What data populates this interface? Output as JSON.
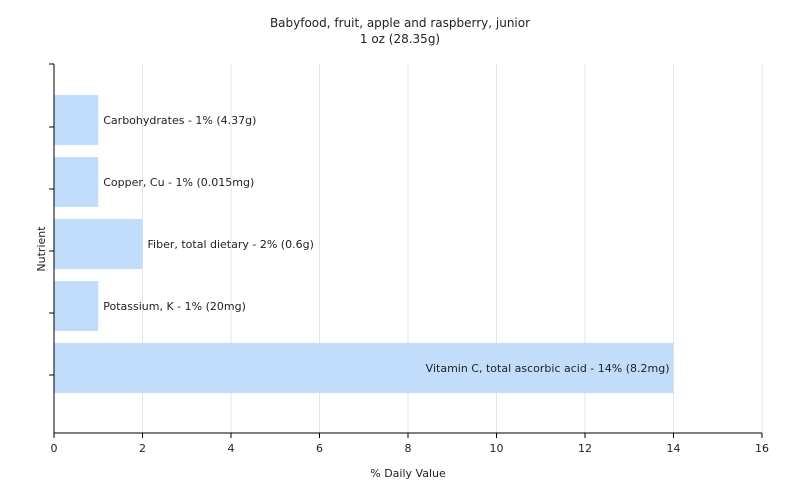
{
  "chart_data": {
    "type": "bar",
    "orientation": "horizontal",
    "title": "Babyfood, fruit, apple and raspberry,  junior",
    "subtitle": "1 oz (28.35g)",
    "xlabel": "% Daily Value",
    "ylabel": "Nutrient",
    "xlim": [
      0,
      16
    ],
    "xticks": [
      0,
      2,
      4,
      6,
      8,
      10,
      12,
      14,
      16
    ],
    "grid": true,
    "categories": [
      "Carbohydrates",
      "Copper, Cu",
      "Fiber, total dietary",
      "Potassium, K",
      "Vitamin C, total ascorbic acid"
    ],
    "values": [
      1,
      1,
      2,
      1,
      14
    ],
    "bar_labels": [
      "Carbohydrates - 1% (4.37g)",
      "Copper, Cu - 1% (0.015mg)",
      "Fiber, total dietary - 2% (0.6g)",
      "Potassium, K - 1% (20mg)",
      "Vitamin C, total ascorbic acid - 14% (8.2mg)"
    ],
    "bar_color": "#c2dcfc",
    "gridline_color": "#e4e4e4",
    "axis_color": "#000000"
  }
}
